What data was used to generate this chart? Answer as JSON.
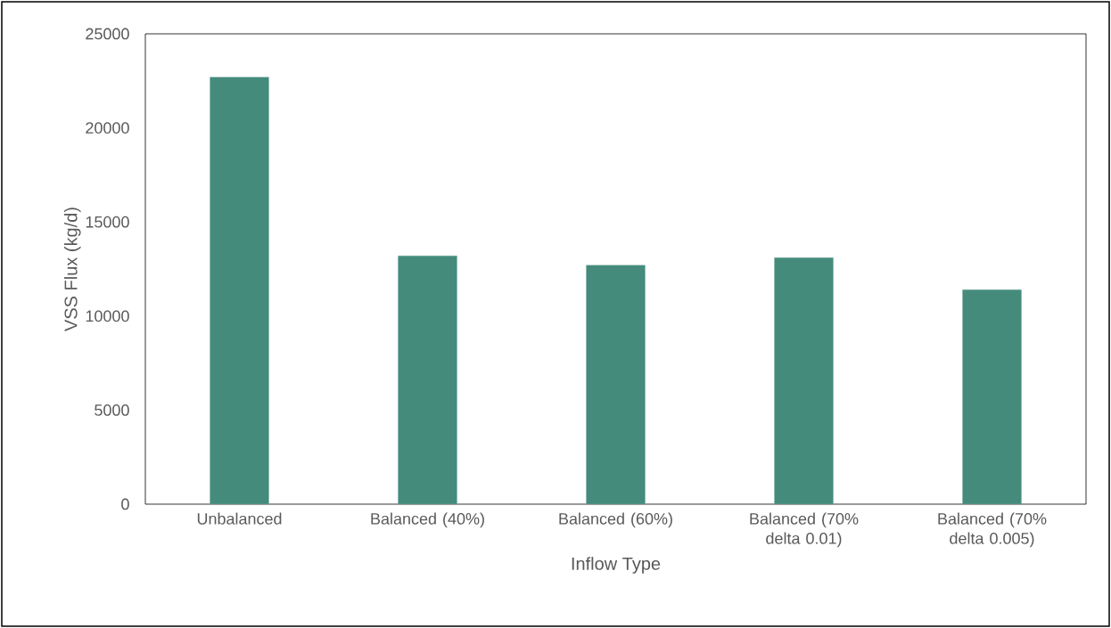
{
  "chart_data": {
    "type": "bar",
    "xlabel": "Inflow Type",
    "ylabel": "VSS Flux (kg/d)",
    "categories": [
      "Unbalanced",
      "Balanced (40%)",
      "Balanced (60%)",
      "Balanced (70% delta 0.01)",
      "Balanced (70% delta 0.005)"
    ],
    "values": [
      22700,
      13200,
      12700,
      13100,
      11400
    ],
    "color": "#448b7c",
    "ylim": [
      0,
      25000
    ],
    "yticks": [
      0,
      5000,
      10000,
      15000,
      20000,
      25000
    ]
  }
}
